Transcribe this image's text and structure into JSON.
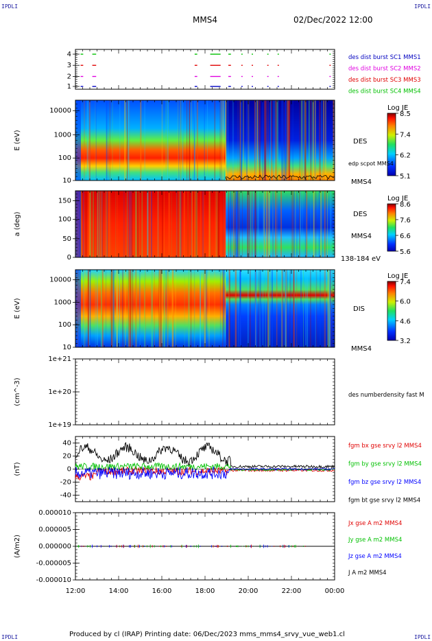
{
  "corners": {
    "tl": "IPDLI",
    "tr": "IPDLI",
    "bl": "IPDLI",
    "br": "IPDLI"
  },
  "header": {
    "spacecraft": "MMS4",
    "datetime": "02/Dec/2022 12:00"
  },
  "footer": {
    "text": "Produced by cl (IRAP)   Printing date: 06/Dec/2023   mms_mms4_srvy_vue_web1.cl"
  },
  "colors": {
    "des_burst_1": "#0000c0",
    "des_burst_2": "#e000e0",
    "des_burst_3": "#e00000",
    "des_burst_4": "#00c000",
    "bx": "#e00000",
    "by": "#00c000",
    "bz": "#0000ff",
    "bt": "#000000"
  },
  "chart_data": [
    {
      "type": "line",
      "panel": "burst",
      "yticks": [
        "1",
        "2",
        "3",
        "4"
      ],
      "legend": [
        {
          "name": "des dist burst SC1 MMS1",
          "color": "#0000c0"
        },
        {
          "name": "des dist burst SC2 MMS2",
          "color": "#e000e0"
        },
        {
          "name": "des dist burst SC3 MMS3",
          "color": "#e00000"
        },
        {
          "name": "des dist burst SC4 MMS4",
          "color": "#00c000"
        }
      ]
    },
    {
      "type": "heatmap",
      "panel": "des_energy",
      "ylabel": "E (eV)",
      "yscale": "log",
      "ylim": [
        10,
        30000
      ],
      "yticks": [
        "10000",
        "1000",
        "100",
        "10"
      ],
      "label": "DES",
      "label2": "edp scpot MMS4",
      "sc_label": "MMS4",
      "colorbar": {
        "title": "Log JE",
        "ticks": [
          "8.5",
          "7.4",
          "6.2",
          "5.1"
        ]
      }
    },
    {
      "type": "heatmap",
      "panel": "des_pitch",
      "ylabel": "a (deg)",
      "ylim": [
        0,
        180
      ],
      "yticks": [
        "150",
        "100",
        "50",
        "0"
      ],
      "label": "DES",
      "sc_label": "MMS4",
      "energy_range": "138-184 eV",
      "colorbar": {
        "title": "Log JE",
        "ticks": [
          "8.6",
          "7.6",
          "6.6",
          "5.6"
        ]
      }
    },
    {
      "type": "heatmap",
      "panel": "dis_energy",
      "ylabel": "E (eV)",
      "yscale": "log",
      "ylim": [
        10,
        30000
      ],
      "yticks": [
        "10000",
        "1000",
        "100",
        "10"
      ],
      "label": "DIS",
      "sc_label": "MMS4",
      "colorbar": {
        "title": "Log JE",
        "ticks": [
          "7.4",
          "6.0",
          "4.6",
          "3.2"
        ]
      }
    },
    {
      "type": "line",
      "panel": "density",
      "ylabel": "(cm^-3)",
      "yscale": "log",
      "ylim": [
        1e+19,
        1e+21
      ],
      "yticks": [
        "1e+21",
        "1e+20",
        "1e+19"
      ],
      "legend": [
        {
          "name": "des numberdensity fast M",
          "color": "#000000"
        }
      ]
    },
    {
      "type": "line",
      "panel": "bfield",
      "ylabel": "(nT)",
      "ylim": [
        -48,
        48
      ],
      "yticks": [
        "40",
        "20",
        "0",
        "-20",
        "-40"
      ],
      "legend": [
        {
          "name": "fgm bx gse srvy l2 MMS4",
          "color": "#e00000"
        },
        {
          "name": "fgm by gse srvy l2 MMS4",
          "color": "#00c000"
        },
        {
          "name": "fgm bz gse srvy l2 MMS4",
          "color": "#0000ff"
        },
        {
          "name": "fgm bt gse srvy l2 MMS4",
          "color": "#000000"
        }
      ]
    },
    {
      "type": "line",
      "panel": "current",
      "ylabel": "(A/m2)",
      "ylim": [
        -1e-05,
        1e-05
      ],
      "yticks": [
        "0.000010",
        "0.000005",
        "0.000000",
        "-0.000005",
        "-0.000010"
      ],
      "legend": [
        {
          "name": "Jx gse A m2 MMS4",
          "color": "#e00000"
        },
        {
          "name": "Jy gse A m2 MMS4",
          "color": "#00c000"
        },
        {
          "name": "Jz gse A m2 MMS4",
          "color": "#0000ff"
        },
        {
          "name": "J A m2 MMS4",
          "color": "#000000"
        }
      ]
    }
  ],
  "xaxis": {
    "ticks": [
      "12:00",
      "14:00",
      "16:00",
      "18:00",
      "20:00",
      "22:00",
      "00:00"
    ]
  }
}
